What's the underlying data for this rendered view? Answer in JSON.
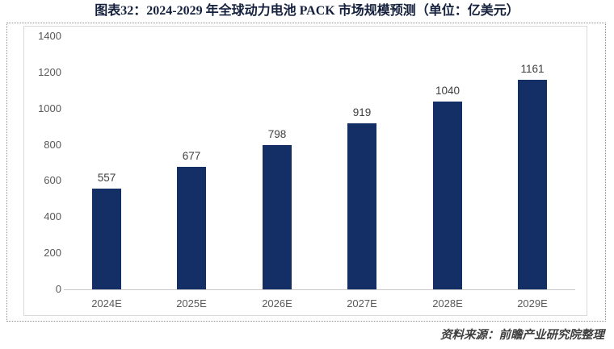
{
  "title": "图表32：2024-2029 年全球动力电池 PACK 市场规模预测（单位：亿美元）",
  "source_note": "资料来源：前瞻产业研究院整理",
  "colors": {
    "bar": "#132F66",
    "title_text": "#14203C",
    "axis_label": "#595959",
    "value_label": "#404040",
    "baseline": "#C9C9C9",
    "frame_border": "#D9D9D9",
    "box_border": "#8F8F8F",
    "source_text": "#3F3F3F"
  },
  "chart_data": {
    "type": "bar",
    "categories": [
      "2024E",
      "2025E",
      "2026E",
      "2027E",
      "2028E",
      "2029E"
    ],
    "values": [
      557,
      677,
      798,
      919,
      1040,
      1161
    ],
    "title": "图表32：2024-2029 年全球动力电池 PACK 市场规模预测（单位：亿美元）",
    "xlabel": "",
    "ylabel": "",
    "ylim": [
      0,
      1400
    ],
    "yticks": [
      0,
      200,
      400,
      600,
      800,
      1000,
      1200,
      1400
    ],
    "grid": false,
    "legend": false,
    "data_labels_shown": true,
    "bar_color": "#132F66"
  }
}
